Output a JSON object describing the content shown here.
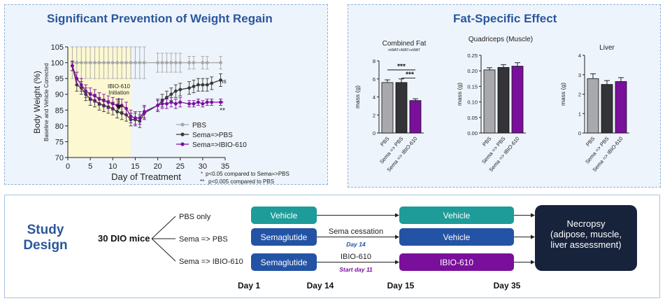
{
  "colors": {
    "gray": "#a8a8a8",
    "dark": "#3a3a3a",
    "purple": "#7a0f9c",
    "teal": "#1e9c99",
    "blue": "#2353a4",
    "navy": "#17223b",
    "title": "#2a579c"
  },
  "weight_panel": {
    "title": "Significant Prevention of Weight Regain",
    "annotation": "IBIO-610\nInitiation",
    "ns_label": "ns",
    "star1": "*",
    "star2": "**",
    "footnote1": "p<0.05 compared to Sema=>PBS",
    "footnote2": "p<0.005 compared to PBS"
  },
  "fat_panel": {
    "title": "Fat-Specific Effect"
  },
  "design": {
    "title": "Study\nDesign",
    "mice": "30 DIO mice",
    "groups": [
      "PBS only",
      "Sema => PBS",
      "Sema => IBIO-610"
    ],
    "row1": {
      "box1": "Vehicle",
      "box2": "Vehicle"
    },
    "row2": {
      "box1": "Semaglutide",
      "box2": "Vehicle",
      "note": "Sema cessation",
      "sub": "Day 14"
    },
    "row3": {
      "box1": "Semaglutide",
      "box2": "IBIO-610",
      "note": "IBIO-610",
      "sub": "Start day 11"
    },
    "necropsy": "Necropsy\n(adipose, muscle,\nliver assessment)",
    "days": [
      "Day 1",
      "Day 14",
      "Day 15",
      "Day 35"
    ]
  },
  "chart_data": [
    {
      "type": "line",
      "title": "Significant Prevention of Weight Regain",
      "xlabel": "Day of Treatment",
      "ylabel": "Body Weight (%)",
      "ylabel2": "Baseline and Vehicle Corrected",
      "xlim": [
        0,
        35
      ],
      "ylim": [
        70,
        105
      ],
      "xticks": [
        0,
        5,
        10,
        15,
        20,
        25,
        30,
        35
      ],
      "yticks": [
        70,
        75,
        80,
        85,
        90,
        95,
        100,
        105
      ],
      "xtick_labels": [
        "0",
        "5",
        "10",
        "15",
        "20",
        "25",
        "30",
        "35"
      ],
      "ytick_labels": [
        "70",
        "75",
        "80",
        "85",
        "90",
        "95",
        "100",
        "105"
      ],
      "shaded_region": [
        0,
        14
      ],
      "series": [
        {
          "name": "PBS",
          "x": [
            1,
            2,
            3,
            4,
            5,
            6,
            7,
            8,
            9,
            10,
            11,
            12,
            13,
            14,
            15,
            16,
            17,
            20,
            21,
            22,
            23,
            24,
            25,
            27,
            28,
            30,
            31,
            34
          ],
          "y": [
            100,
            100,
            100,
            100,
            100,
            100,
            100,
            100,
            100,
            100,
            100,
            100,
            100,
            100,
            100,
            100,
            100,
            100,
            100,
            100,
            100,
            100,
            100,
            100,
            100,
            100,
            100,
            100
          ],
          "err": [
            5,
            5,
            5,
            5,
            5,
            5,
            5,
            5,
            5,
            5,
            5,
            5,
            5,
            5,
            5,
            5,
            5,
            3,
            3,
            3,
            3,
            3,
            3,
            2,
            2,
            2,
            2,
            2
          ]
        },
        {
          "name": "Sema=>PBS",
          "x": [
            1,
            2,
            3,
            4,
            5,
            6,
            7,
            8,
            9,
            10,
            11,
            12,
            13,
            14,
            15,
            16,
            17,
            20,
            21,
            22,
            23,
            24,
            25,
            27,
            28,
            29,
            30,
            31,
            32,
            34
          ],
          "y": [
            99,
            93,
            92,
            90,
            88.5,
            88,
            87,
            86.5,
            86,
            85.5,
            84.5,
            84,
            83.5,
            82,
            82,
            81.5,
            84,
            86.5,
            88,
            89,
            90,
            91,
            91.5,
            92,
            92.5,
            93,
            93,
            93,
            93.5,
            94.5
          ],
          "err": [
            1.5,
            2,
            2,
            2,
            2,
            2,
            2,
            2,
            2,
            2,
            2,
            2,
            2,
            2,
            2,
            2,
            2,
            2,
            2,
            2,
            2,
            2,
            2,
            2,
            2,
            2,
            2,
            2,
            2,
            2
          ]
        },
        {
          "name": "Sema=>IBIO-610",
          "x": [
            1,
            2,
            3,
            4,
            5,
            6,
            7,
            8,
            9,
            10,
            11,
            12,
            13,
            14,
            15,
            16,
            17,
            20,
            21,
            22,
            23,
            24,
            25,
            27,
            28,
            29,
            30,
            31,
            32,
            34
          ],
          "y": [
            99,
            95,
            93,
            91,
            90,
            89.5,
            88.5,
            88,
            87.5,
            87,
            86.5,
            86.5,
            85.5,
            83,
            82.5,
            82.5,
            84.5,
            86.5,
            87,
            87,
            87.5,
            87,
            87.5,
            87,
            87,
            87.5,
            87,
            87.5,
            87.5,
            87.5
          ],
          "err": [
            1.5,
            2,
            2,
            2,
            2,
            2,
            2,
            2,
            2,
            2,
            2,
            2,
            2,
            2,
            2,
            2,
            2,
            1.5,
            1.5,
            1.5,
            1.5,
            1.5,
            1.5,
            1,
            1,
            1,
            1,
            1,
            1,
            1
          ]
        }
      ],
      "legend": [
        "PBS",
        "Sema=>PBS",
        "Sema=>IBIO-610"
      ]
    },
    {
      "type": "bar",
      "title": "Combined Fat",
      "subtitle": "mWAT+iWAT+eWAT",
      "ylabel": "mass (g)",
      "ylim": [
        0,
        8
      ],
      "yticks": [
        0,
        2,
        4,
        6,
        8
      ],
      "ytick_labels": [
        "0",
        "2",
        "4",
        "6",
        "8"
      ],
      "categories": [
        "PBS",
        "Sema => PBS",
        "Sema => IBIO-610"
      ],
      "values": [
        5.6,
        5.6,
        3.6
      ],
      "err": [
        0.3,
        0.4,
        0.2
      ],
      "sig": [
        "***",
        "***"
      ]
    },
    {
      "type": "bar",
      "title": "Quadriceps (Muscle)",
      "ylabel": "mass (g)",
      "ylim": [
        0,
        0.25
      ],
      "yticks": [
        0,
        0.05,
        0.1,
        0.15,
        0.2,
        0.25
      ],
      "ytick_labels": [
        "0.00",
        "0.05",
        "0.10",
        "0.15",
        "0.20",
        "0.25"
      ],
      "categories": [
        "PBS",
        "Sema => PBS",
        "Sema => IBIO-610"
      ],
      "values": [
        0.203,
        0.211,
        0.215
      ],
      "err": [
        0.007,
        0.009,
        0.011
      ]
    },
    {
      "type": "bar",
      "title": "Liver",
      "ylabel": "mass (g)",
      "ylim": [
        0,
        4
      ],
      "yticks": [
        0,
        1,
        2,
        3,
        4
      ],
      "ytick_labels": [
        "0",
        "1",
        "2",
        "3",
        "4"
      ],
      "categories": [
        "PBS",
        "Sema => PBS",
        "Sema => IBIO-610"
      ],
      "values": [
        2.8,
        2.5,
        2.65
      ],
      "err": [
        0.25,
        0.2,
        0.2
      ]
    }
  ]
}
